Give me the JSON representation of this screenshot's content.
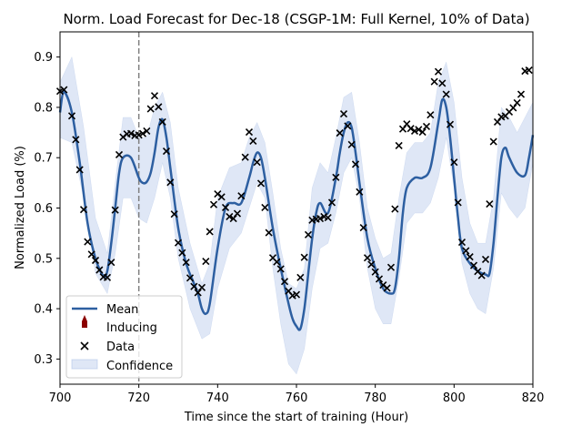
{
  "chart_data": {
    "type": "line",
    "title": "Norm. Load Forecast for Dec-18 (CSGP-1M: Full Kernel, 10% of Data)",
    "xlabel": "Time since the start of training (Hour)",
    "ylabel": "Normalized Load (%)",
    "xlim": [
      700,
      820
    ],
    "ylim": [
      0.25,
      0.95
    ],
    "x_ticks": [
      700,
      720,
      740,
      760,
      780,
      800,
      820
    ],
    "x_tick_labels": [
      "700",
      "720",
      "740",
      "760",
      "780",
      "800",
      "820"
    ],
    "y_ticks": [
      0.3,
      0.4,
      0.5,
      0.6,
      0.7,
      0.8,
      0.9
    ],
    "y_tick_labels": [
      "0.3",
      "0.4",
      "0.5",
      "0.6",
      "0.7",
      "0.8",
      "0.9"
    ],
    "vline_x": 720,
    "legend": {
      "placement": "lower-left",
      "entries": [
        "Mean",
        "Inducing",
        "Data",
        "Confidence"
      ]
    },
    "colors": {
      "mean": "#2d5fa1",
      "confidence": "#b0c4e8",
      "data": "#000000",
      "inducing": "#8b0000",
      "vline": "#808080"
    },
    "mean": {
      "x": [
        700,
        701,
        703,
        705,
        707,
        709,
        711,
        712,
        713,
        714,
        715,
        716,
        718,
        720,
        721,
        722,
        723,
        724,
        725,
        726,
        727,
        728,
        730,
        732,
        734,
        735,
        736,
        737,
        738,
        740,
        742,
        744,
        746,
        748,
        749,
        750,
        751,
        752,
        754,
        756,
        758,
        759,
        760,
        761,
        762,
        763,
        764,
        765,
        766,
        768,
        770,
        771,
        772,
        773,
        774,
        775,
        776,
        778,
        780,
        782,
        784,
        785,
        786,
        787,
        788,
        790,
        792,
        794,
        796,
        797,
        798,
        799,
        800,
        801,
        802,
        804,
        806,
        808,
        809,
        810,
        811,
        812,
        813,
        814,
        816,
        818,
        819,
        820
      ],
      "y": [
        0.79,
        0.83,
        0.79,
        0.69,
        0.57,
        0.5,
        0.465,
        0.475,
        0.53,
        0.6,
        0.67,
        0.7,
        0.7,
        0.66,
        0.65,
        0.652,
        0.67,
        0.71,
        0.76,
        0.776,
        0.74,
        0.68,
        0.56,
        0.49,
        0.45,
        0.43,
        0.4,
        0.39,
        0.41,
        0.52,
        0.6,
        0.61,
        0.61,
        0.66,
        0.69,
        0.71,
        0.7,
        0.66,
        0.56,
        0.48,
        0.41,
        0.38,
        0.365,
        0.36,
        0.4,
        0.47,
        0.54,
        0.59,
        0.61,
        0.59,
        0.66,
        0.71,
        0.75,
        0.77,
        0.76,
        0.71,
        0.65,
        0.54,
        0.48,
        0.44,
        0.43,
        0.44,
        0.5,
        0.59,
        0.64,
        0.66,
        0.66,
        0.68,
        0.77,
        0.815,
        0.8,
        0.74,
        0.66,
        0.58,
        0.52,
        0.49,
        0.475,
        0.468,
        0.47,
        0.53,
        0.62,
        0.7,
        0.72,
        0.7,
        0.67,
        0.665,
        0.7,
        0.745
      ]
    },
    "confidence": {
      "x": [
        700,
        703,
        706,
        709,
        712,
        714,
        716,
        718,
        720,
        722,
        724,
        726,
        728,
        730,
        733,
        736,
        738,
        740,
        743,
        746,
        748,
        750,
        752,
        754,
        756,
        758,
        760,
        762,
        764,
        766,
        768,
        770,
        772,
        774,
        776,
        778,
        780,
        782,
        784,
        786,
        788,
        790,
        792,
        794,
        796,
        798,
        800,
        802,
        804,
        806,
        808,
        810,
        812,
        814,
        816,
        818,
        820
      ],
      "lower": [
        0.74,
        0.73,
        0.62,
        0.47,
        0.43,
        0.51,
        0.62,
        0.62,
        0.58,
        0.57,
        0.62,
        0.69,
        0.62,
        0.5,
        0.4,
        0.34,
        0.35,
        0.44,
        0.52,
        0.55,
        0.6,
        0.65,
        0.62,
        0.48,
        0.37,
        0.29,
        0.27,
        0.32,
        0.44,
        0.52,
        0.53,
        0.59,
        0.67,
        0.7,
        0.62,
        0.48,
        0.4,
        0.37,
        0.37,
        0.46,
        0.57,
        0.59,
        0.59,
        0.61,
        0.66,
        0.74,
        0.64,
        0.49,
        0.43,
        0.4,
        0.39,
        0.48,
        0.63,
        0.6,
        0.58,
        0.6,
        0.69
      ],
      "upper": [
        0.85,
        0.9,
        0.76,
        0.58,
        0.51,
        0.65,
        0.78,
        0.78,
        0.74,
        0.74,
        0.8,
        0.83,
        0.77,
        0.64,
        0.53,
        0.45,
        0.49,
        0.62,
        0.68,
        0.69,
        0.74,
        0.77,
        0.73,
        0.63,
        0.52,
        0.45,
        0.44,
        0.48,
        0.64,
        0.69,
        0.67,
        0.74,
        0.82,
        0.83,
        0.73,
        0.6,
        0.54,
        0.5,
        0.51,
        0.62,
        0.71,
        0.73,
        0.73,
        0.75,
        0.85,
        0.89,
        0.81,
        0.66,
        0.57,
        0.53,
        0.53,
        0.62,
        0.8,
        0.78,
        0.75,
        0.78,
        0.81
      ]
    },
    "data_points": {
      "x": [
        700,
        701,
        703,
        704,
        705,
        706,
        707,
        708,
        709,
        710,
        711,
        712,
        713,
        714,
        715,
        716,
        717,
        718,
        719,
        720,
        721,
        722,
        723,
        724,
        725,
        726,
        727,
        728,
        729,
        730,
        731,
        732,
        733,
        734,
        735,
        736,
        737,
        738,
        739,
        740,
        741,
        742,
        743,
        744,
        745,
        746,
        747,
        748,
        749,
        750,
        751,
        752,
        753,
        754,
        755,
        756,
        757,
        758,
        759,
        760,
        761,
        762,
        763,
        764,
        765,
        766,
        767,
        768,
        769,
        770,
        771,
        772,
        773,
        774,
        775,
        776,
        777,
        778,
        779,
        780,
        781,
        782,
        783,
        784,
        785,
        786,
        787,
        788,
        789,
        790,
        791,
        792,
        793,
        794,
        795,
        796,
        797,
        798,
        799,
        800,
        801,
        802,
        803,
        804,
        805,
        806,
        807,
        808,
        809,
        810,
        811,
        812,
        813,
        814,
        815,
        816,
        817,
        818,
        819
      ],
      "y": [
        0.832,
        0.835,
        0.783,
        0.736,
        0.676,
        0.597,
        0.533,
        0.508,
        0.496,
        0.477,
        0.463,
        0.462,
        0.492,
        0.596,
        0.706,
        0.741,
        0.747,
        0.748,
        0.744,
        0.745,
        0.748,
        0.753,
        0.797,
        0.823,
        0.801,
        0.771,
        0.713,
        0.651,
        0.588,
        0.531,
        0.511,
        0.492,
        0.461,
        0.444,
        0.432,
        0.442,
        0.494,
        0.553,
        0.607,
        0.628,
        0.622,
        0.601,
        0.583,
        0.579,
        0.589,
        0.624,
        0.701,
        0.751,
        0.733,
        0.691,
        0.649,
        0.601,
        0.551,
        0.501,
        0.493,
        0.479,
        0.454,
        0.435,
        0.426,
        0.428,
        0.462,
        0.502,
        0.547,
        0.576,
        0.578,
        0.579,
        0.583,
        0.581,
        0.611,
        0.661,
        0.749,
        0.787,
        0.763,
        0.726,
        0.687,
        0.632,
        0.561,
        0.501,
        0.488,
        0.473,
        0.459,
        0.447,
        0.441,
        0.482,
        0.598,
        0.724,
        0.757,
        0.767,
        0.758,
        0.753,
        0.756,
        0.751,
        0.762,
        0.785,
        0.851,
        0.871,
        0.848,
        0.826,
        0.766,
        0.691,
        0.611,
        0.532,
        0.515,
        0.503,
        0.486,
        0.474,
        0.466,
        0.498,
        0.608,
        0.732,
        0.771,
        0.781,
        0.783,
        0.791,
        0.799,
        0.809,
        0.826,
        0.872,
        0.874
      ]
    }
  }
}
